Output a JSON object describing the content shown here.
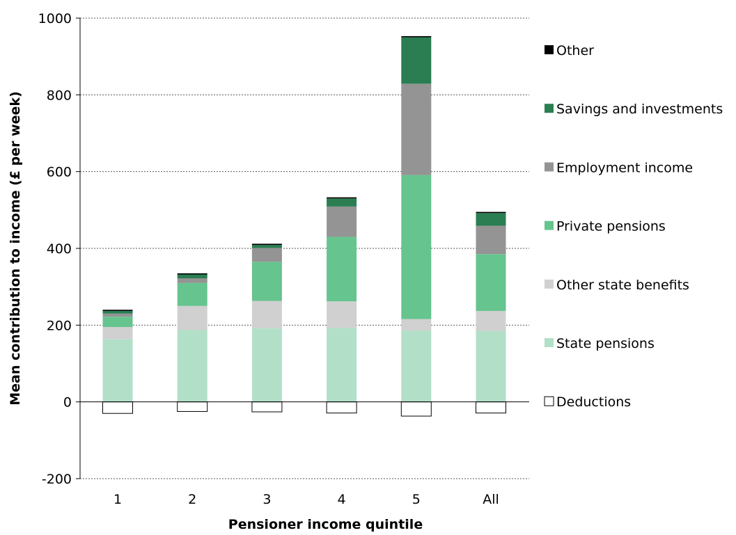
{
  "chart_data": {
    "type": "bar",
    "stacked": true,
    "title": "",
    "xlabel": "Pensioner income quintile",
    "ylabel": "Mean contribution to income (£ per week)",
    "categories": [
      "1",
      "2",
      "3",
      "4",
      "5",
      "All"
    ],
    "ylim": [
      -200,
      1000
    ],
    "yticks": [
      -200,
      0,
      200,
      400,
      600,
      800,
      1000
    ],
    "grid": "horizontal dotted",
    "legend_position": "right",
    "series": [
      {
        "name": "State pensions",
        "color": "#b2dfc8",
        "values": [
          163,
          187,
          192,
          193,
          186,
          185
        ]
      },
      {
        "name": "Other state benefits",
        "color": "#d0d0d0",
        "values": [
          32,
          63,
          71,
          69,
          30,
          52
        ]
      },
      {
        "name": "Private pensions",
        "color": "#66c48e",
        "values": [
          27,
          60,
          102,
          168,
          375,
          148
        ]
      },
      {
        "name": "Employment income",
        "color": "#949494",
        "values": [
          8,
          12,
          36,
          79,
          238,
          74
        ]
      },
      {
        "name": "Savings and investments",
        "color": "#2a7e52",
        "values": [
          7,
          10,
          8,
          21,
          121,
          33
        ]
      },
      {
        "name": "Other",
        "color": "#000000",
        "values": [
          3,
          3,
          3,
          3,
          3,
          3
        ]
      },
      {
        "name": "Deductions",
        "color": "#ffffff",
        "outline": "#000000",
        "values": [
          -30,
          -25,
          -26,
          -29,
          -37,
          -29
        ]
      }
    ],
    "legend_order": [
      "Other",
      "Savings and investments",
      "Employment income",
      "Private pensions",
      "Other state benefits",
      "State pensions",
      "Deductions"
    ]
  }
}
